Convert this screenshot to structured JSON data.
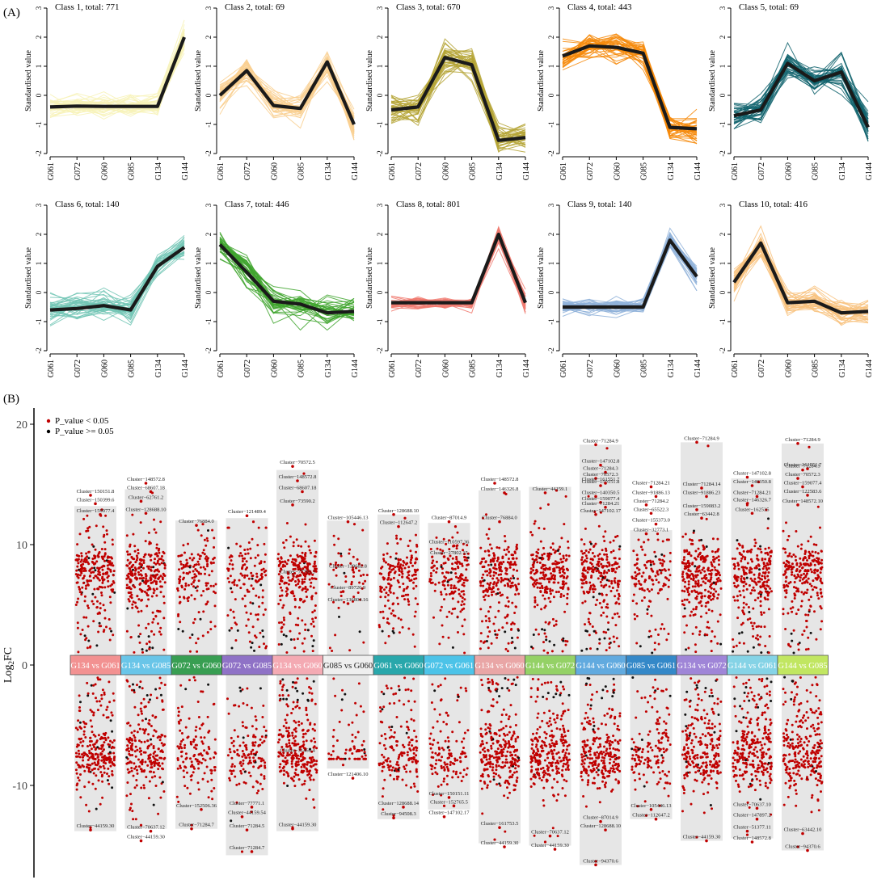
{
  "panel_a_label": "(A)",
  "panel_b_label": "(B)",
  "chart_data": [
    {
      "type": "line",
      "panel": "A",
      "ylabel": "Standardised value",
      "ylim": [
        -2,
        3
      ],
      "yticks": [
        -2,
        -1,
        0,
        1,
        2,
        3
      ],
      "categories": [
        "G061",
        "G072",
        "G060",
        "G085",
        "G134",
        "G144"
      ],
      "classes": [
        {
          "title": "Class 1, total: 771",
          "color": "#f7f2b6",
          "centroid": [
            -0.4,
            -0.37,
            -0.38,
            -0.38,
            -0.38,
            2.0
          ],
          "spread": [
            0.35,
            0.35,
            0.35,
            0.35,
            0.35,
            0.4
          ]
        },
        {
          "title": "Class 2, total: 69",
          "color": "#f9cf8f",
          "centroid": [
            0.0,
            0.85,
            -0.35,
            -0.45,
            1.15,
            -1.0
          ],
          "spread": [
            0.4,
            0.4,
            0.45,
            0.45,
            0.45,
            0.5
          ]
        },
        {
          "title": "Class 3, total: 670",
          "color": "#b5a536",
          "centroid": [
            -0.5,
            -0.4,
            1.3,
            1.05,
            -1.55,
            -1.45
          ],
          "spread": [
            0.5,
            0.45,
            0.5,
            0.5,
            0.45,
            0.45
          ]
        },
        {
          "title": "Class 4, total: 443",
          "color": "#f6890a",
          "centroid": [
            1.35,
            1.7,
            1.65,
            1.45,
            -1.1,
            -1.15
          ],
          "spread": [
            0.4,
            0.5,
            0.5,
            0.45,
            0.5,
            0.5
          ]
        },
        {
          "title": "Class 5, total: 69",
          "color": "#11636d",
          "centroid": [
            -0.7,
            -0.5,
            1.1,
            0.5,
            0.8,
            -1.1
          ],
          "spread": [
            0.45,
            0.45,
            0.45,
            0.45,
            0.45,
            0.45
          ]
        },
        {
          "title": "Class 6, total: 140",
          "color": "#72c6b5",
          "centroid": [
            -0.6,
            -0.55,
            -0.45,
            -0.6,
            0.9,
            1.55
          ],
          "spread": [
            0.4,
            0.4,
            0.4,
            0.4,
            0.35,
            0.35
          ]
        },
        {
          "title": "Class 7, total: 446",
          "color": "#3fa42e",
          "centroid": [
            1.65,
            0.7,
            -0.3,
            -0.4,
            -0.7,
            -0.65
          ],
          "spread": [
            0.35,
            0.45,
            0.45,
            0.45,
            0.45,
            0.45
          ]
        },
        {
          "title": "Class 8, total: 801",
          "color": "#f07a70",
          "centroid": [
            -0.35,
            -0.35,
            -0.35,
            -0.35,
            2.0,
            -0.35
          ],
          "spread": [
            0.2,
            0.2,
            0.2,
            0.2,
            0.3,
            0.35
          ]
        },
        {
          "title": "Class 9, total: 140",
          "color": "#8fb2d9",
          "centroid": [
            -0.5,
            -0.5,
            -0.5,
            -0.5,
            1.8,
            0.55
          ],
          "spread": [
            0.3,
            0.25,
            0.25,
            0.25,
            0.25,
            0.4
          ]
        },
        {
          "title": "Class 10, total: 416",
          "color": "#f8c27e",
          "centroid": [
            0.35,
            1.7,
            -0.35,
            -0.3,
            -0.7,
            -0.65
          ],
          "spread": [
            0.4,
            0.4,
            0.4,
            0.4,
            0.4,
            0.4
          ]
        }
      ]
    },
    {
      "type": "scatter",
      "panel": "B",
      "ylabel": "Log2FC",
      "ylabel_main": "Log",
      "ylabel_sub": "2",
      "ylabel_tail": "FC",
      "ylim": [
        -17,
        21
      ],
      "yticks": [
        -10,
        0,
        10,
        20
      ],
      "legend": [
        {
          "label": "P_value < 0.05",
          "color": "#c00000"
        },
        {
          "label": "P_value >= 0.05",
          "color": "#000000"
        }
      ],
      "comparisons": [
        {
          "label": "G134 vs G061",
          "color": "#f28c8c",
          "max": 13.2,
          "min": -13.8,
          "density": 1.0
        },
        {
          "label": "G134 vs G085",
          "color": "#62c3e8",
          "max": 14.6,
          "min": -13.6,
          "density": 1.0
        },
        {
          "label": "G072 vs G060",
          "color": "#2e9a4a",
          "max": 12.0,
          "min": -13.6,
          "density": 0.55
        },
        {
          "label": "G072 vs G085",
          "color": "#8a6bc4",
          "max": 12.2,
          "min": -15.8,
          "density": 0.55
        },
        {
          "label": "G134 vs G060",
          "color": "#f4a7b0",
          "max": 16.2,
          "min": -13.8,
          "density": 1.0
        },
        {
          "label": "G085 vs G060",
          "color": "#efefef",
          "max": 12.0,
          "min": -8.6,
          "density": 0.25
        },
        {
          "label": "G061 vs G060",
          "color": "#1fa3a8",
          "max": 12.5,
          "min": -12.8,
          "density": 0.65
        },
        {
          "label": "G072 vs G061",
          "color": "#43c1e8",
          "max": 11.8,
          "min": -12.0,
          "density": 0.55
        },
        {
          "label": "G134 vs G060",
          "color": "#e9a2a2",
          "max": 14.5,
          "min": -14.8,
          "density": 1.0
        },
        {
          "label": "G144 vs G072",
          "color": "#8fd05f",
          "max": 14.8,
          "min": -15.0,
          "density": 1.0
        },
        {
          "label": "G144 vs G060",
          "color": "#5aa6de",
          "max": 18.3,
          "min": -16.6,
          "density": 1.0
        },
        {
          "label": "G085 vs G061",
          "color": "#2a83c6",
          "max": 11.2,
          "min": -12.8,
          "density": 0.55
        },
        {
          "label": "G134 vs G072",
          "color": "#9b7fd6",
          "max": 18.5,
          "min": -14.6,
          "density": 1.0
        },
        {
          "label": "G144 vs G061",
          "color": "#7fd2e6",
          "max": 15.5,
          "min": -14.4,
          "density": 1.0
        },
        {
          "label": "G144 vs G085",
          "color": "#bfe65a",
          "max": 18.4,
          "min": -15.4,
          "density": 1.0
        }
      ],
      "annotations": [
        {
          "label": "Cluster−150151.8",
          "col": 0,
          "y": 14.1
        },
        {
          "label": "Cluster−150399.6",
          "col": 0,
          "y": 13.4
        },
        {
          "label": "Cluster−159077.4",
          "col": 0,
          "y": 12.5
        },
        {
          "label": "Cluster−44159.30",
          "col": 0,
          "y": -13.7
        },
        {
          "label": "Cluster−148572.8",
          "col": 1,
          "y": 15.1
        },
        {
          "label": "Cluster−68607.18",
          "col": 1,
          "y": 14.4
        },
        {
          "label": "Cluster−62761.2",
          "col": 1,
          "y": 13.6
        },
        {
          "label": "Cluster−128688.10",
          "col": 1,
          "y": 12.6
        },
        {
          "label": "Cluster−70637.12",
          "col": 1,
          "y": -13.8
        },
        {
          "label": "Cluster−44159.30",
          "col": 1,
          "y": -14.6
        },
        {
          "label": "Cluster−76884.0",
          "col": 2,
          "y": 11.6
        },
        {
          "label": "Cluster−152506.36",
          "col": 2,
          "y": -12.0
        },
        {
          "label": "Cluster−71284.7",
          "col": 2,
          "y": -13.6
        },
        {
          "label": "Cluster−121489.4",
          "col": 3,
          "y": 12.4
        },
        {
          "label": "Cluster−77771.1",
          "col": 3,
          "y": -11.8
        },
        {
          "label": "Cluster−44159.54",
          "col": 3,
          "y": -12.6
        },
        {
          "label": "Cluster−71284.5",
          "col": 3,
          "y": -13.7
        },
        {
          "label": "Cluster−71284.7",
          "col": 3,
          "y": -15.5
        },
        {
          "label": "Cluster−70572.5",
          "col": 4,
          "y": 16.5
        },
        {
          "label": "Cluster−148572.8",
          "col": 4,
          "y": 15.3
        },
        {
          "label": "Cluster−68607.18",
          "col": 4,
          "y": 14.4
        },
        {
          "label": "Cluster−73590.2",
          "col": 4,
          "y": 13.3
        },
        {
          "label": "Cluster−77791.3",
          "col": 4,
          "y": 7.4
        },
        {
          "label": "Cluster−31460.4",
          "col": 4,
          "y": -7.4
        },
        {
          "label": "Cluster−44159.30",
          "col": 4,
          "y": -13.6
        },
        {
          "label": "Cluster−105446.13",
          "col": 5,
          "y": 11.9
        },
        {
          "label": "Cluster−139682.8",
          "col": 5,
          "y": 7.9
        },
        {
          "label": "Cluster−89726.9",
          "col": 5,
          "y": 6.1
        },
        {
          "label": "Cluster−136804.16",
          "col": 5,
          "y": 5.1
        },
        {
          "label": "Cluster−121406.10",
          "col": 5,
          "y": -9.4
        },
        {
          "label": "Cluster−128688.10",
          "col": 6,
          "y": 12.5
        },
        {
          "label": "Cluster−112647.2",
          "col": 6,
          "y": 11.5
        },
        {
          "label": "Cluster−128688.14",
          "col": 6,
          "y": -11.8
        },
        {
          "label": "Cluster−94508.3",
          "col": 6,
          "y": -12.7
        },
        {
          "label": "Cluster−87014.9",
          "col": 7,
          "y": 11.9
        },
        {
          "label": "Cluster−110597.36",
          "col": 7,
          "y": 9.9
        },
        {
          "label": "Cluster−27802.15",
          "col": 7,
          "y": 9.0
        },
        {
          "label": "Cluster−150151.11",
          "col": 7,
          "y": -11.0
        },
        {
          "label": "Cluster−152765.5",
          "col": 7,
          "y": -11.7
        },
        {
          "label": "Cluster−147102.17",
          "col": 7,
          "y": -12.6
        },
        {
          "label": "Cluster−76884.0",
          "col": 8,
          "y": 11.9
        },
        {
          "label": "Cluster−146326.8",
          "col": 8,
          "y": 14.3
        },
        {
          "label": "Cluster−148572.8",
          "col": 8,
          "y": 15.1
        },
        {
          "label": "Cluster−161753.5",
          "col": 8,
          "y": -13.5
        },
        {
          "label": "Cluster−44159.30",
          "col": 8,
          "y": -15.1
        },
        {
          "label": "Cluster−44159.1",
          "col": 9,
          "y": 14.3
        },
        {
          "label": "Cluster−70637.12",
          "col": 9,
          "y": -14.2
        },
        {
          "label": "Cluster−44159.30",
          "col": 9,
          "y": -15.3
        },
        {
          "label": "Cluster−71284.9",
          "col": 10,
          "y": 18.3
        },
        {
          "label": "Cluster−147102.8",
          "col": 10,
          "y": 16.6
        },
        {
          "label": "Cluster−71284.3",
          "col": 10,
          "y": 16.0
        },
        {
          "label": "Cluster−70572.3",
          "col": 10,
          "y": 15.5
        },
        {
          "label": "Cluster−150151.8",
          "col": 10,
          "y": 14.9
        },
        {
          "label": "Cluster−161551.7",
          "col": 10,
          "y": 15.1
        },
        {
          "label": "Cluster−140350.5",
          "col": 10,
          "y": 14.0
        },
        {
          "label": "Cluster−159077.4",
          "col": 10,
          "y": 13.5
        },
        {
          "label": "Cluster−71284.21",
          "col": 10,
          "y": 13.1
        },
        {
          "label": "Cluster−147102.17",
          "col": 10,
          "y": 12.5
        },
        {
          "label": "Cluster−87014.9",
          "col": 10,
          "y": -13.0
        },
        {
          "label": "Cluster−128688.10",
          "col": 10,
          "y": -13.7
        },
        {
          "label": "Cluster−94370.6",
          "col": 10,
          "y": -16.6
        },
        {
          "label": "Cluster−71284.21",
          "col": 11,
          "y": 14.8
        },
        {
          "label": "Cluster−91886.13",
          "col": 11,
          "y": 14.0
        },
        {
          "label": "Cluster−71284.2",
          "col": 11,
          "y": 13.3
        },
        {
          "label": "Cluster−65522.3",
          "col": 11,
          "y": 12.6
        },
        {
          "label": "Cluster−155373.0",
          "col": 11,
          "y": 11.7
        },
        {
          "label": "Cluster−32773.1",
          "col": 11,
          "y": 10.9
        },
        {
          "label": "Cluster−105446.13",
          "col": 11,
          "y": -12.0
        },
        {
          "label": "Cluster−112647.2",
          "col": 11,
          "y": -12.8
        },
        {
          "label": "Cluster−71284.9",
          "col": 12,
          "y": 18.5
        },
        {
          "label": "Cluster−71284.14",
          "col": 12,
          "y": 14.7
        },
        {
          "label": "Cluster−91886.23",
          "col": 12,
          "y": 14.0
        },
        {
          "label": "Cluster−159083.2",
          "col": 12,
          "y": 12.9
        },
        {
          "label": "Cluster−63442.8",
          "col": 12,
          "y": 12.2
        },
        {
          "label": "Cluster−44159.30",
          "col": 12,
          "y": -14.6
        },
        {
          "label": "Cluster−147102.8",
          "col": 13,
          "y": 15.6
        },
        {
          "label": "Cluster−140350.8",
          "col": 13,
          "y": 14.9
        },
        {
          "label": "Cluster−71284.21",
          "col": 13,
          "y": 14.0
        },
        {
          "label": "Cluster−146326.7",
          "col": 13,
          "y": 13.4
        },
        {
          "label": "Cluster−162535",
          "col": 13,
          "y": 12.6
        },
        {
          "label": "Cluster−147897.2",
          "col": 13,
          "y": -12.8
        },
        {
          "label": "Cluster−51377.11",
          "col": 13,
          "y": -13.8
        },
        {
          "label": "Cluster−148572.8",
          "col": 13,
          "y": -14.7
        },
        {
          "label": "Cluster−70637.10",
          "col": 13,
          "y": -11.9
        },
        {
          "label": "Cluster−71284.9",
          "col": 14,
          "y": 18.4
        },
        {
          "label": "Cluster−71284.3",
          "col": 14,
          "y": 16.2
        },
        {
          "label": "Cluster−161551.7",
          "col": 14,
          "y": 16.3
        },
        {
          "label": "Cluster−70572.3",
          "col": 14,
          "y": 15.5
        },
        {
          "label": "Cluster−159077.4",
          "col": 14,
          "y": 14.8
        },
        {
          "label": "Cluster−122583.6",
          "col": 14,
          "y": 14.1
        },
        {
          "label": "Cluster−148572.10",
          "col": 14,
          "y": 13.3
        },
        {
          "label": "Cluster−63442.10",
          "col": 14,
          "y": -14.0
        },
        {
          "label": "Cluster−94370.6",
          "col": 14,
          "y": -15.4
        }
      ]
    }
  ]
}
